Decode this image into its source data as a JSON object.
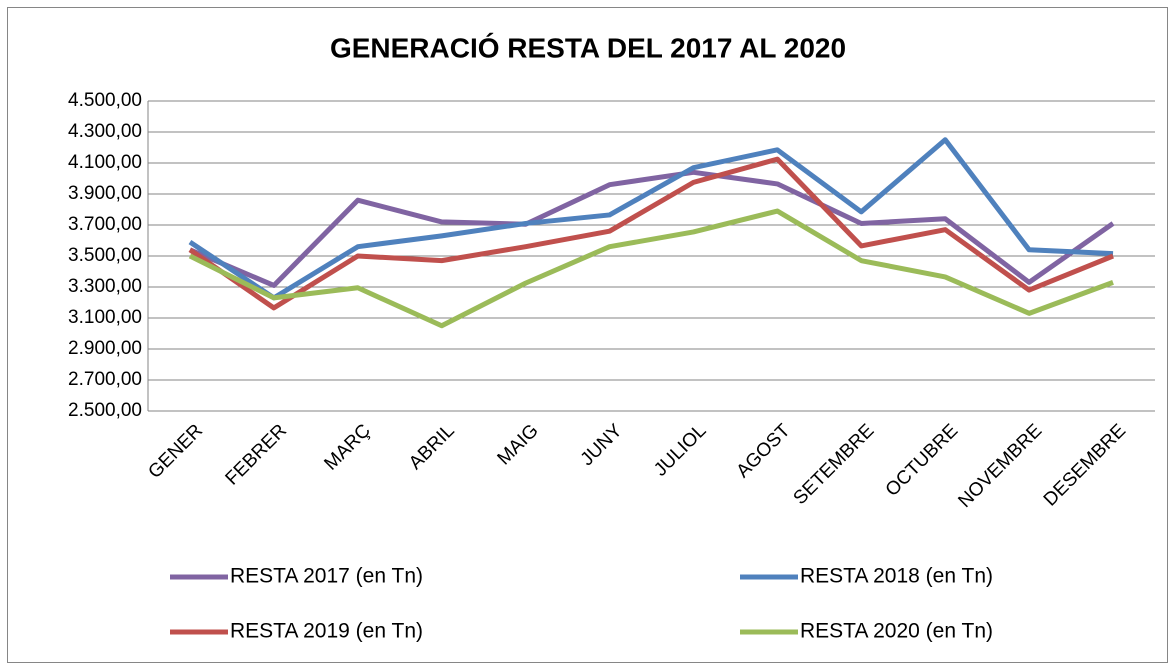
{
  "chart_data": {
    "type": "line",
    "title": "GENERACIÓ RESTA DEL 2017 AL 2020",
    "categories": [
      "GENER",
      "FEBRER",
      "MARÇ",
      "ABRIL",
      "MAIG",
      "JUNY",
      "JULIOL",
      "AGOST",
      "SETEMBRE",
      "OCTUBRE",
      "NOVEMBRE",
      "DESEMBRE"
    ],
    "series": [
      {
        "name": "RESTA 2017 (en Tn)",
        "color": "#8064a2",
        "values": [
          3540,
          3310,
          3860,
          3720,
          3705,
          3960,
          4040,
          3965,
          3710,
          3740,
          3330,
          3710
        ]
      },
      {
        "name": "RESTA 2018 (en Tn)",
        "color": "#4f81bd",
        "values": [
          3590,
          3230,
          3560,
          3630,
          3710,
          3765,
          4070,
          4185,
          3785,
          4250,
          3540,
          3515
        ]
      },
      {
        "name": "RESTA 2019 (en Tn)",
        "color": "#c0504d",
        "values": [
          3540,
          3165,
          3500,
          3470,
          3560,
          3660,
          3975,
          4125,
          3565,
          3670,
          3280,
          3500
        ]
      },
      {
        "name": "RESTA 2020 (en Tn)",
        "color": "#9bbb59",
        "values": [
          3500,
          3230,
          3295,
          3050,
          3325,
          3560,
          3655,
          3790,
          3470,
          3365,
          3130,
          3330
        ]
      }
    ],
    "ylim": [
      2500,
      4500
    ],
    "yticks": [
      {
        "value": 2500,
        "label": "2.500,00"
      },
      {
        "value": 2700,
        "label": "2.700,00"
      },
      {
        "value": 2900,
        "label": "2.900,00"
      },
      {
        "value": 3100,
        "label": "3.100,00"
      },
      {
        "value": 3300,
        "label": "3.300,00"
      },
      {
        "value": 3500,
        "label": "3.500,00"
      },
      {
        "value": 3700,
        "label": "3.700,00"
      },
      {
        "value": 3900,
        "label": "3.900,00"
      },
      {
        "value": 4100,
        "label": "4.100,00"
      },
      {
        "value": 4300,
        "label": "4.300,00"
      },
      {
        "value": 4500,
        "label": "4.500,00"
      }
    ],
    "grid": true,
    "legend": "bottom"
  }
}
